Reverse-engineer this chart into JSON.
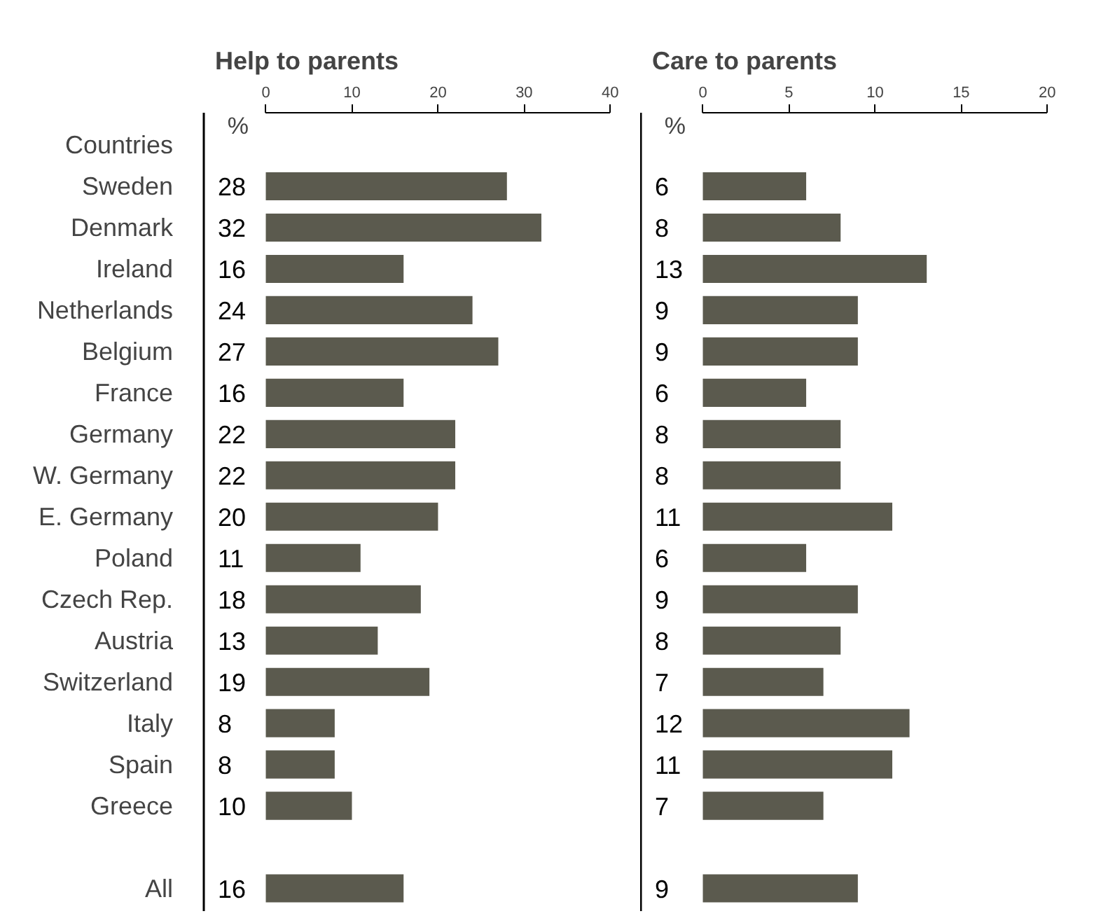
{
  "chart_data": [
    {
      "type": "bar",
      "orientation": "horizontal",
      "title": "Help to parents",
      "xlabel": "%",
      "ylabel": "Countries",
      "categories": [
        "Sweden",
        "Denmark",
        "Ireland",
        "Netherlands",
        "Belgium",
        "France",
        "Germany",
        "W. Germany",
        "E. Germany",
        "Poland",
        "Czech Rep.",
        "Austria",
        "Switzerland",
        "Italy",
        "Spain",
        "Greece",
        null,
        "All"
      ],
      "values": [
        28,
        32,
        16,
        24,
        27,
        16,
        22,
        22,
        20,
        11,
        18,
        13,
        19,
        8,
        8,
        10,
        null,
        16
      ],
      "color": "#5b5a4e",
      "xlim": [
        0,
        40
      ],
      "xticks": [
        0,
        10,
        20,
        30,
        40
      ],
      "data_labels": true,
      "grid": false
    },
    {
      "type": "bar",
      "orientation": "horizontal",
      "title": "Care to parents",
      "xlabel": "%",
      "values": [
        6,
        8,
        13,
        9,
        9,
        6,
        8,
        8,
        11,
        6,
        9,
        8,
        7,
        12,
        11,
        7,
        null,
        9
      ],
      "color": "#5b5a4e",
      "xlim": [
        0,
        20
      ],
      "xticks": [
        0,
        5,
        10,
        15,
        20
      ],
      "data_labels": true,
      "grid": false,
      "tick_labels": "x"
    }
  ]
}
